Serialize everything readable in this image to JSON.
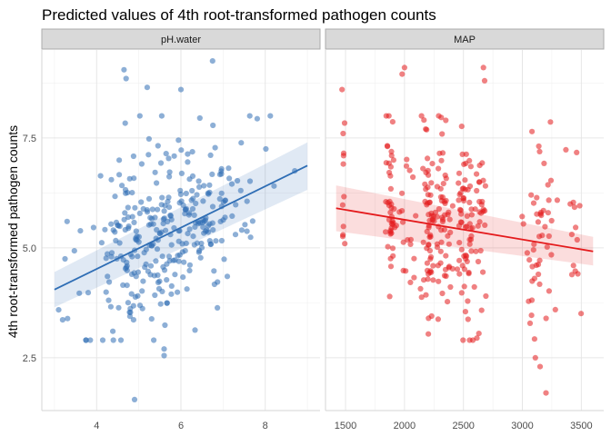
{
  "chart_data": {
    "type": "scatter",
    "title": "Predicted values of 4th root-transformed pathogen counts",
    "ylabel": "4th root-transformed pathogen counts",
    "ylim": [
      1.3,
      9.5
    ],
    "yticks": [
      2.5,
      5.0,
      7.5
    ],
    "ytick_labels": [
      "2.5",
      "5.0",
      "7.5"
    ],
    "grid": true,
    "legend": "none",
    "panels": [
      {
        "name": "pH.water",
        "color": "#2f6eb5",
        "xlim": [
          2.7,
          9.3
        ],
        "xticks": [
          4,
          6,
          8
        ],
        "xtick_labels": [
          "4",
          "6",
          "8"
        ],
        "fit": {
          "x0": 3.0,
          "y0": 4.05,
          "x1": 9.0,
          "y1": 6.87
        },
        "band_lower": {
          "x0": 3.0,
          "y0": 3.65,
          "x1": 9.0,
          "y1": 6.32
        },
        "band_upper": {
          "x0": 3.0,
          "y0": 4.45,
          "x1": 9.0,
          "y1": 7.4
        },
        "points": {
          "seed": 11,
          "n": 320,
          "x_range": [
            3.1,
            8.9
          ],
          "x_mean": 5.6,
          "x_sd": 0.9,
          "resid_sd": 1.0,
          "outliers": [
            [
              4.65,
              9.05
            ],
            [
              4.7,
              8.85
            ],
            [
              5.2,
              8.65
            ],
            [
              6.0,
              8.6
            ],
            [
              6.75,
              9.25
            ],
            [
              4.9,
              1.55
            ],
            [
              5.6,
              2.55
            ],
            [
              5.6,
              2.7
            ],
            [
              3.3,
              5.6
            ],
            [
              3.25,
              4.75
            ],
            [
              8.7,
              6.75
            ],
            [
              7.1,
              4.35
            ]
          ]
        }
      },
      {
        "name": "MAP",
        "color": "#e41a1c",
        "xlim": [
          1330,
          3690
        ],
        "xticks": [
          1500,
          2000,
          2500,
          3000,
          3500
        ],
        "xtick_labels": [
          "1500",
          "2000",
          "2500",
          "3000",
          "3500"
        ],
        "fit": {
          "x0": 1420,
          "y0": 5.9,
          "x1": 3600,
          "y1": 4.92
        },
        "band_lower": {
          "x0": 1420,
          "y0": 5.38,
          "x1": 3600,
          "y1": 4.6
        },
        "band_upper": {
          "x0": 1420,
          "y0": 6.42,
          "x1": 3600,
          "y1": 5.25
        },
        "points": {
          "seed": 23,
          "n": 330,
          "clusters": [
            [
              1480,
              6,
              10
            ],
            [
              1880,
              25,
              42
            ],
            [
              2020,
              35,
              18
            ],
            [
              2200,
              30,
              55
            ],
            [
              2330,
              40,
              55
            ],
            [
              2520,
              45,
              70
            ],
            [
              2650,
              18,
              22
            ],
            [
              3100,
              40,
              32
            ],
            [
              3220,
              35,
              16
            ],
            [
              3430,
              40,
              14
            ]
          ],
          "resid_sd": 1.05,
          "outliers": [
            [
              1470,
              8.6
            ],
            [
              1480,
              7.6
            ],
            [
              2000,
              9.1
            ],
            [
              1980,
              8.95
            ],
            [
              2670,
              9.1
            ],
            [
              2680,
              8.8
            ],
            [
              3200,
              1.7
            ],
            [
              3150,
              2.3
            ],
            [
              3110,
              2.5
            ],
            [
              2350,
              7.9
            ],
            [
              2580,
              2.9
            ]
          ]
        }
      }
    ]
  }
}
